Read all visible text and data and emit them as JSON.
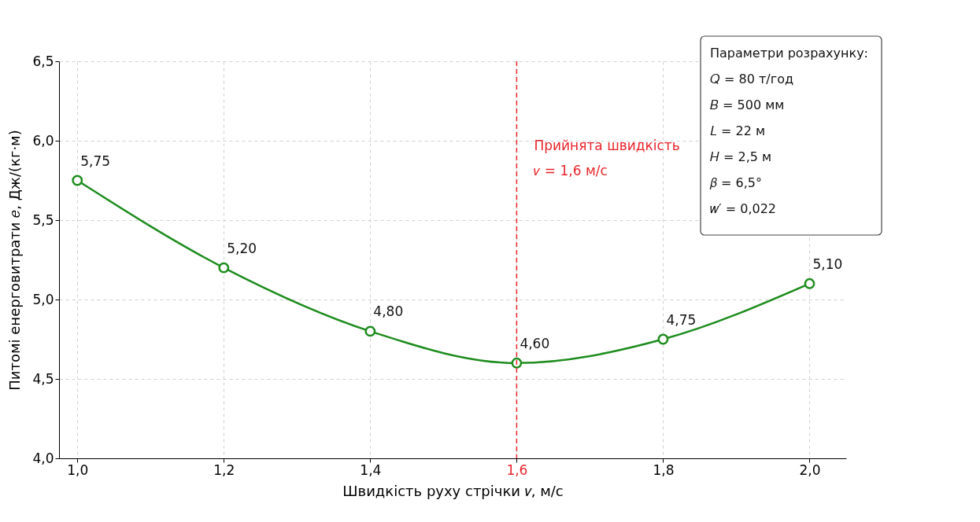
{
  "chart_data": {
    "type": "line",
    "xlabel": "Швидкість руху стрічки 𝑣, м/с",
    "ylabel": "Питомі енерговитрати 𝑒, Дж/(кг·м)",
    "x": [
      1.0,
      1.2,
      1.4,
      1.6,
      1.8,
      2.0
    ],
    "series": [
      {
        "color": "#1e8c1e",
        "values": [
          5.75,
          5.2,
          4.8,
          4.6,
          4.75,
          5.1
        ]
      }
    ],
    "value_labels": [
      "5,75",
      "5,20",
      "4,80",
      "4,60",
      "4,75",
      "5,10"
    ],
    "xlim": [
      0.975,
      2.05
    ],
    "xticks": [
      {
        "value": 1.0,
        "label": "1,0"
      },
      {
        "value": 1.2,
        "label": "1,2"
      },
      {
        "value": 1.4,
        "label": "1,4"
      },
      {
        "value": 1.6,
        "label": "1,6"
      },
      {
        "value": 1.8,
        "label": "1,8"
      },
      {
        "value": 2.0,
        "label": "2,0"
      }
    ],
    "ylim": [
      4.0,
      6.5
    ],
    "yticks": [
      {
        "value": 4.0,
        "label": "4,0"
      },
      {
        "value": 4.5,
        "label": "4,5"
      },
      {
        "value": 5.0,
        "label": "5,0"
      },
      {
        "value": 5.5,
        "label": "5,5"
      },
      {
        "value": 6.0,
        "label": "6,0"
      },
      {
        "value": 6.5,
        "label": "6,5"
      }
    ],
    "ref_lines": [
      {
        "axis": "x",
        "value": 1.6,
        "label": "Прийнята швидкість\n𝑣 = 1,6 м/с",
        "color": "#e8242a",
        "line_style": "dashed"
      }
    ],
    "annotations": [
      "Параметри розрахунку:",
      "𝑄 = 80 т/год",
      "𝐵 = 500 мм",
      "𝐿 = 22 м",
      "𝐻 = 2,5 м",
      "𝛽 = 6,5°",
      "𝑤′ = 0,022"
    ],
    "grid": true,
    "marker": "circle",
    "line_style": "solid"
  }
}
